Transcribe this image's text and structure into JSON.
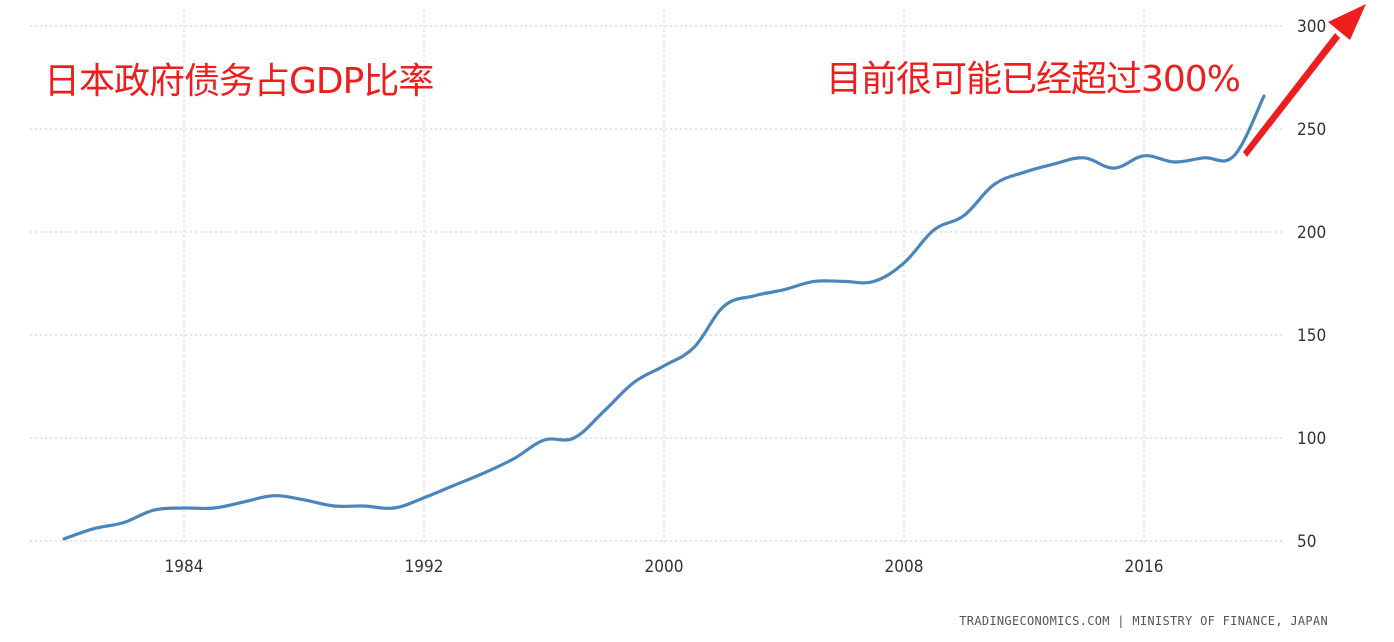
{
  "chart_data": {
    "type": "line",
    "title": "",
    "xlabel": "",
    "ylabel": "",
    "xlim": [
      1980,
      2021
    ],
    "ylim": [
      50,
      300
    ],
    "x_ticks": [
      1984,
      1992,
      2000,
      2008,
      2016
    ],
    "y_ticks": [
      50,
      100,
      150,
      200,
      250,
      300
    ],
    "y_tick_labels": [
      "50",
      "100",
      "150",
      "200",
      "250",
      "300"
    ],
    "grid": true,
    "series": [
      {
        "color": "#4a86bb",
        "x": [
          1980,
          1981,
          1982,
          1983,
          1984,
          1985,
          1986,
          1987,
          1988,
          1989,
          1990,
          1991,
          1992,
          1993,
          1994,
          1995,
          1996,
          1997,
          1998,
          1999,
          2000,
          2001,
          2002,
          2003,
          2004,
          2005,
          2006,
          2007,
          2008,
          2009,
          2010,
          2011,
          2012,
          2013,
          2014,
          2015,
          2016,
          2017,
          2018,
          2019,
          2020
        ],
        "values": [
          51,
          56,
          59,
          65,
          66,
          66,
          69,
          72,
          70,
          67,
          67,
          66,
          71,
          77,
          83,
          90,
          99,
          100,
          113,
          127,
          135,
          144,
          164,
          169,
          172,
          176,
          176,
          176,
          185,
          201,
          208,
          223,
          229,
          233,
          236,
          231,
          237,
          234,
          236,
          237,
          266
        ]
      }
    ]
  },
  "annotations": {
    "title_cn": "日本政府债务占GDP比率",
    "note_cn": "目前很可能已经超过300%",
    "arrow_color": "#ee1e1e"
  },
  "source": "TRADINGECONOMICS.COM | MINISTRY OF FINANCE, JAPAN"
}
